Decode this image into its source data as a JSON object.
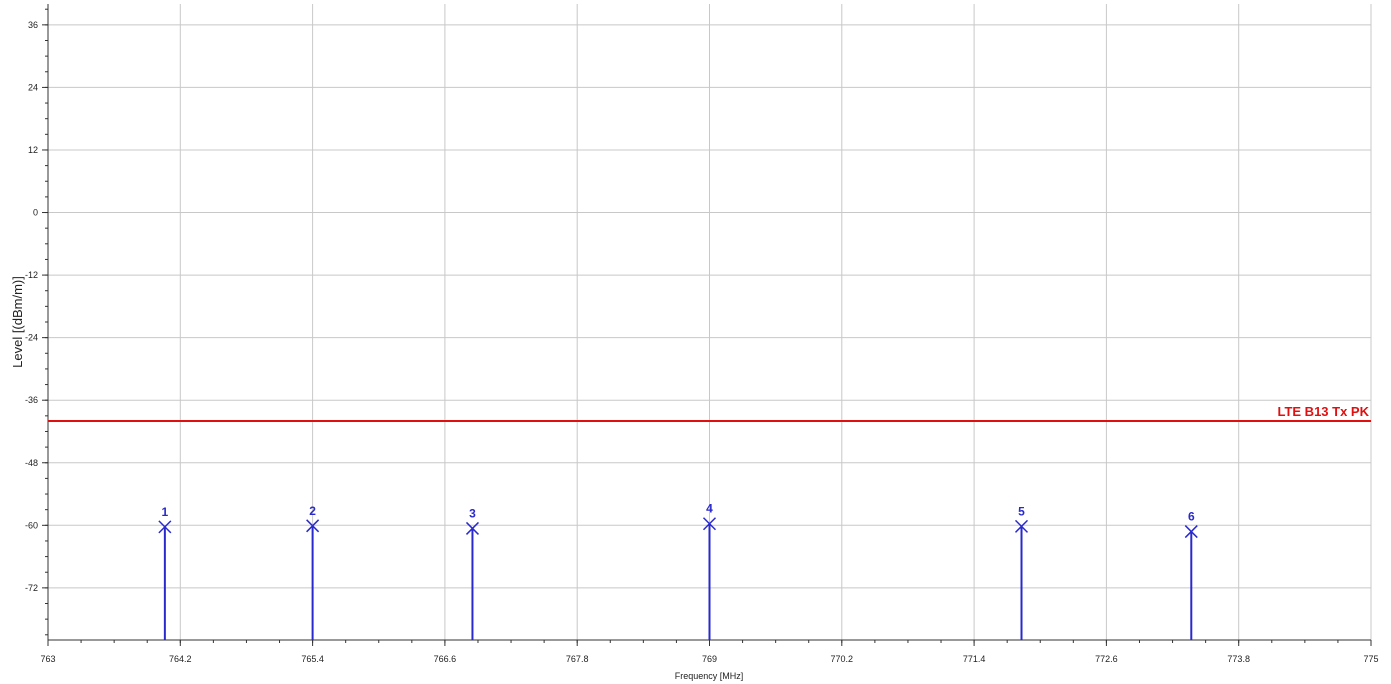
{
  "chart_data": {
    "type": "line",
    "xlabel": "Frequency [MHz]",
    "ylabel": "Level [(dBm/m)]",
    "xlim": [
      763,
      775
    ],
    "ylim": [
      -82,
      40
    ],
    "x_ticks": [
      "763",
      "764.2",
      "765.4",
      "766.6",
      "767.8",
      "769",
      "770.2",
      "771.4",
      "772.6",
      "773.8",
      "775"
    ],
    "y_ticks": [
      "36",
      "24",
      "12",
      "0",
      "-12",
      "-24",
      "-36",
      "-48",
      "-60",
      "-72"
    ],
    "grid": true,
    "limit_line": {
      "name": "LTE B13 Tx PK",
      "value": -40,
      "color": "#e01010"
    },
    "markers": [
      {
        "label": "1",
        "x": 764.06,
        "y": -60.3
      },
      {
        "label": "2",
        "x": 765.4,
        "y": -60.1
      },
      {
        "label": "3",
        "x": 766.85,
        "y": -60.6
      },
      {
        "label": "4",
        "x": 769.0,
        "y": -59.7
      },
      {
        "label": "5",
        "x": 771.83,
        "y": -60.2
      },
      {
        "label": "6",
        "x": 773.37,
        "y": -61.2
      }
    ],
    "marker_color": "#2a2acc"
  }
}
